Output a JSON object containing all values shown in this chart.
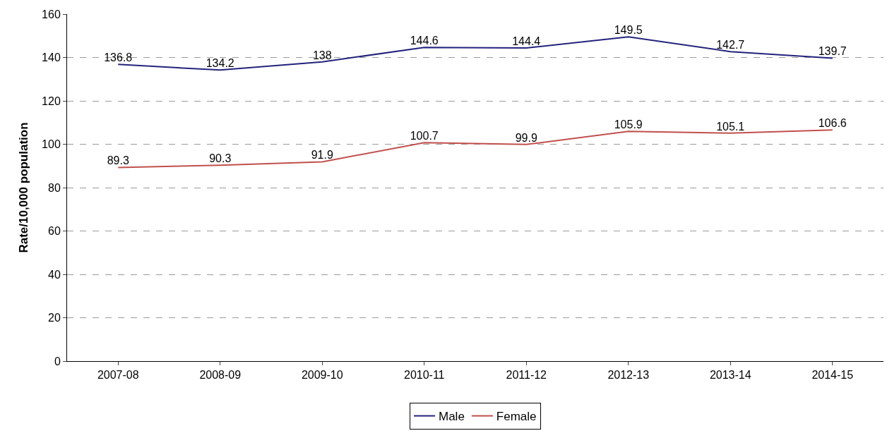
{
  "chart_data": {
    "type": "line",
    "ylabel": "Rate/10,000 population",
    "categories": [
      "2007-08",
      "2008-09",
      "2009-10",
      "2010-11",
      "2011-12",
      "2012-13",
      "2013-14",
      "2014-15"
    ],
    "series": [
      {
        "name": "Male",
        "color": "#23237d",
        "values": [
          136.8,
          134.2,
          138,
          144.6,
          144.4,
          149.5,
          142.7,
          139.7
        ]
      },
      {
        "name": "Female",
        "color": "#c0504d",
        "values": [
          89.3,
          90.3,
          91.9,
          100.7,
          99.9,
          105.9,
          105.1,
          106.6
        ]
      }
    ],
    "ylim": [
      0,
      160
    ],
    "yticks": [
      0,
      20,
      40,
      60,
      80,
      100,
      120,
      140,
      160
    ],
    "grid": "y",
    "legend": "bottom",
    "marker": "none",
    "line_style": "solid",
    "data_labels": true
  }
}
